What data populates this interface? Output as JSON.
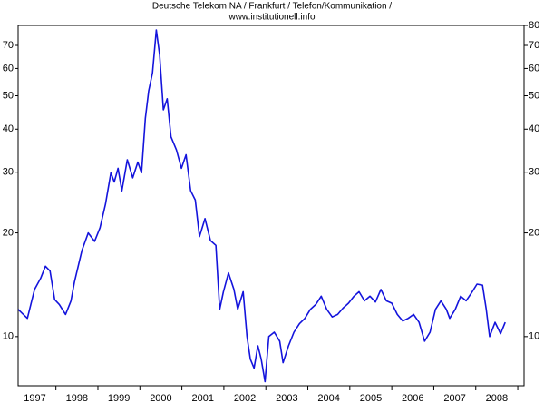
{
  "chart_data": {
    "type": "line",
    "title": "Deutsche Telekom NA / Frankfurt / Telefon/Kommunikation /",
    "subtitle": "www.institutionell.info",
    "log_y": true,
    "xlim": [
      1997.1,
      2009.15
    ],
    "ylim": [
      7.2,
      80
    ],
    "y2lim": [
      7.2,
      80
    ],
    "xticks": [
      {
        "value": 1997.5,
        "label": "1997"
      },
      {
        "value": 1998.5,
        "label": "1998"
      },
      {
        "value": 1999.5,
        "label": "1999"
      },
      {
        "value": 2000.5,
        "label": "2000"
      },
      {
        "value": 2001.5,
        "label": "2001"
      },
      {
        "value": 2002.5,
        "label": "2002"
      },
      {
        "value": 2003.5,
        "label": "2003"
      },
      {
        "value": 2004.5,
        "label": "2004"
      },
      {
        "value": 2005.5,
        "label": "2005"
      },
      {
        "value": 2006.5,
        "label": "2006"
      },
      {
        "value": 2007.5,
        "label": "2007"
      },
      {
        "value": 2008.5,
        "label": "2008"
      }
    ],
    "xminorticks": [
      1998,
      1999,
      2000,
      2001,
      2002,
      2003,
      2004,
      2005,
      2006,
      2007,
      2008,
      2009
    ],
    "yticks": [
      10,
      20,
      30,
      40,
      50,
      60,
      70
    ],
    "y2ticks": [
      10,
      20,
      30,
      40,
      50,
      60,
      70,
      80
    ],
    "series": [
      {
        "color": "#1414dc",
        "x": [
          1997.1,
          1997.32,
          1997.49,
          1997.64,
          1997.75,
          1997.86,
          1997.97,
          1998.08,
          1998.23,
          1998.36,
          1998.44,
          1998.62,
          1998.77,
          1998.92,
          1999.05,
          1999.18,
          1999.31,
          1999.39,
          1999.48,
          1999.57,
          1999.7,
          1999.83,
          1999.95,
          2000.04,
          2000.13,
          2000.21,
          2000.3,
          2000.39,
          2000.47,
          2000.56,
          2000.65,
          2000.74,
          2000.87,
          2000.99,
          2001.1,
          2001.21,
          2001.32,
          2001.42,
          2001.55,
          2001.68,
          2001.81,
          2001.9,
          2001.99,
          2002.11,
          2002.24,
          2002.33,
          2002.46,
          2002.55,
          2002.63,
          2002.72,
          2002.81,
          2002.89,
          2002.98,
          2003.07,
          2003.2,
          2003.33,
          2003.41,
          2003.54,
          2003.67,
          2003.8,
          2003.93,
          2004.06,
          2004.19,
          2004.32,
          2004.45,
          2004.58,
          2004.71,
          2004.84,
          2004.97,
          2005.1,
          2005.22,
          2005.35,
          2005.48,
          2005.61,
          2005.74,
          2005.87,
          2006.0,
          2006.13,
          2006.26,
          2006.39,
          2006.52,
          2006.65,
          2006.78,
          2006.91,
          2007.04,
          2007.17,
          2007.3,
          2007.38,
          2007.51,
          2007.64,
          2007.77,
          2007.9,
          2008.03,
          2008.16,
          2008.25,
          2008.33,
          2008.46,
          2008.59,
          2008.7
        ],
        "values": [
          12.0,
          11.3,
          13.7,
          14.8,
          16.0,
          15.5,
          12.8,
          12.4,
          11.6,
          12.7,
          14.4,
          17.8,
          20.0,
          18.9,
          20.7,
          24.2,
          29.9,
          28.1,
          30.8,
          26.5,
          32.6,
          28.9,
          32.1,
          29.9,
          43,
          51.7,
          58.3,
          77.6,
          65.6,
          45.5,
          49,
          38,
          34.8,
          30.8,
          33.7,
          26.5,
          24.9,
          19.5,
          22.0,
          19.0,
          18.4,
          12.0,
          13.5,
          15.3,
          13.7,
          12.0,
          13.5,
          10.0,
          8.6,
          8.1,
          9.4,
          8.6,
          7.4,
          10.0,
          10.3,
          9.7,
          8.4,
          9.4,
          10.3,
          10.9,
          11.3,
          12.0,
          12.4,
          13.1,
          12.0,
          11.4,
          11.6,
          12.1,
          12.5,
          13.1,
          13.5,
          12.7,
          13.1,
          12.6,
          13.7,
          12.7,
          12.5,
          11.6,
          11.1,
          11.3,
          11.6,
          11.0,
          9.7,
          10.3,
          12.0,
          12.7,
          12.0,
          11.3,
          12.0,
          13.1,
          12.7,
          13.4,
          14.2,
          14.1,
          12.0,
          10.0,
          11.0,
          10.2,
          11.0
        ]
      }
    ]
  }
}
